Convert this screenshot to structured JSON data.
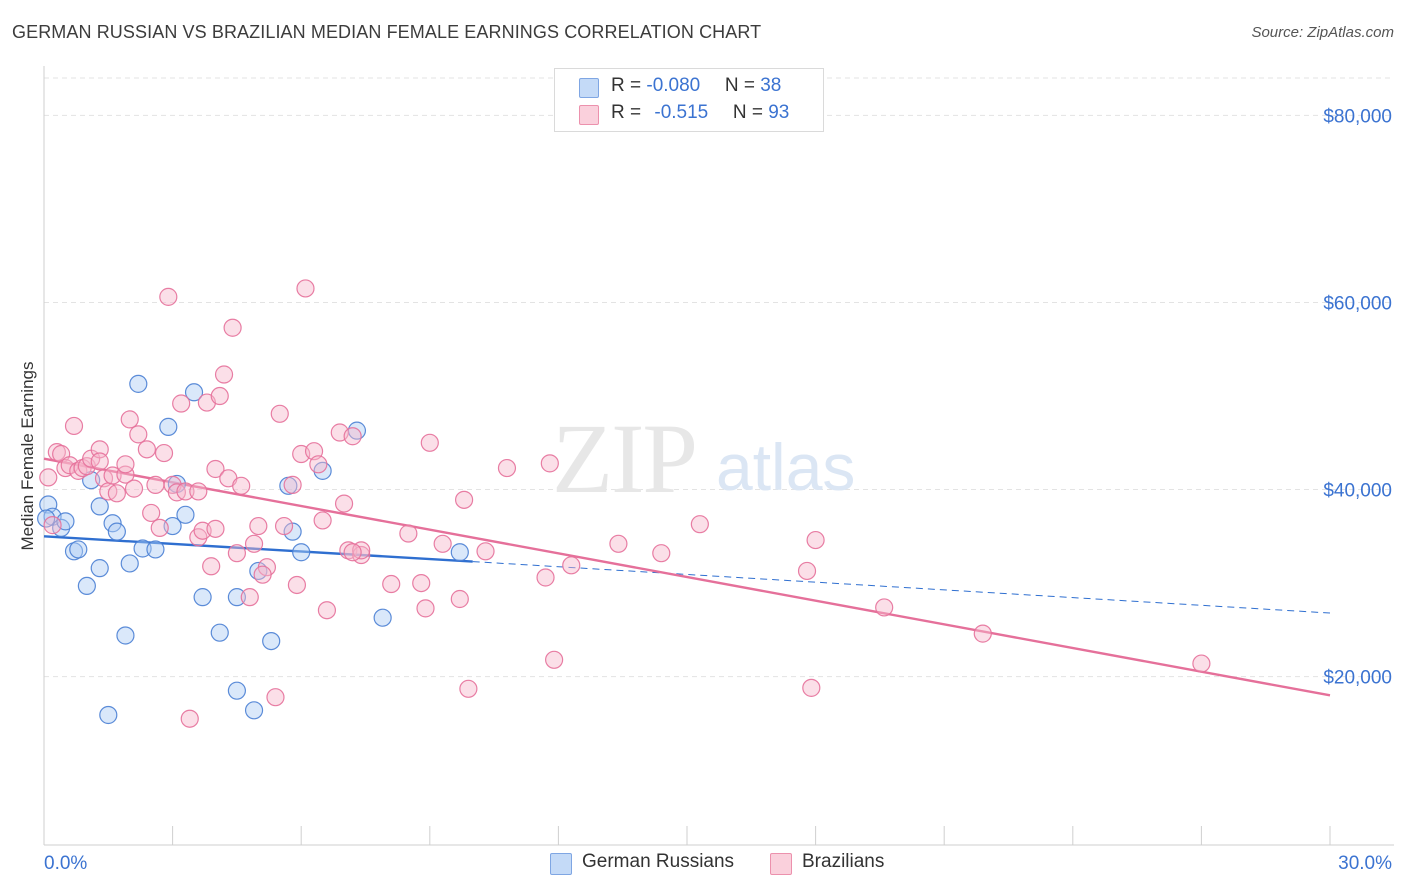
{
  "title": "GERMAN RUSSIAN VS BRAZILIAN MEDIAN FEMALE EARNINGS CORRELATION CHART",
  "source": "Source: ZipAtlas.com",
  "watermark": {
    "zip": "ZIP",
    "atlas": "atlas"
  },
  "legend": {
    "rows": [
      {
        "r_label": "R = ",
        "r_value": "-0.080",
        "n_label": "N = ",
        "n_value": "38",
        "color": "#aecbf5"
      },
      {
        "r_label": "R = ",
        "r_value": "-0.515",
        "n_label": "N = ",
        "n_value": "93",
        "color": "#f7b8cb"
      }
    ]
  },
  "bottom_legend": [
    {
      "label": "German Russians",
      "color": "#aecbf5"
    },
    {
      "label": "Brazilians",
      "color": "#f7b8cb"
    }
  ],
  "chart_data": {
    "type": "scatter",
    "title": "GERMAN RUSSIAN VS BRAZILIAN MEDIAN FEMALE EARNINGS CORRELATION CHART",
    "xlabel": "",
    "ylabel": "Median Female Earnings",
    "xlim": [
      0,
      30
    ],
    "ylim": [
      2000,
      84000
    ],
    "x_tick_labels": [
      "0.0%",
      "30.0%"
    ],
    "y_ticks": [
      20000,
      40000,
      60000,
      80000
    ],
    "y_tick_labels": [
      "$20,000",
      "$40,000",
      "$60,000",
      "$80,000"
    ],
    "grid": true,
    "legend_position": "top-center",
    "series": [
      {
        "name": "German Russians",
        "color": "#4a7fd4",
        "fill": "#aecbf5",
        "trend": {
          "x": [
            0,
            10
          ],
          "y": [
            35000,
            32300
          ],
          "dashed_to": [
            30,
            26800
          ]
        },
        "points": [
          [
            0.1,
            38400
          ],
          [
            0.2,
            37100
          ],
          [
            0.4,
            35900
          ],
          [
            0.5,
            36600
          ],
          [
            0.7,
            33400
          ],
          [
            0.8,
            33600
          ],
          [
            1.0,
            29700
          ],
          [
            1.1,
            41000
          ],
          [
            1.3,
            38200
          ],
          [
            1.3,
            31600
          ],
          [
            1.5,
            15900
          ],
          [
            1.6,
            36400
          ],
          [
            1.7,
            35500
          ],
          [
            1.9,
            24400
          ],
          [
            2.0,
            32100
          ],
          [
            2.2,
            51300
          ],
          [
            2.3,
            33700
          ],
          [
            2.6,
            33600
          ],
          [
            2.9,
            46700
          ],
          [
            3.0,
            36100
          ],
          [
            3.1,
            40600
          ],
          [
            3.3,
            37300
          ],
          [
            3.5,
            50400
          ],
          [
            3.7,
            28500
          ],
          [
            4.1,
            24700
          ],
          [
            4.5,
            18500
          ],
          [
            4.5,
            28500
          ],
          [
            4.9,
            16400
          ],
          [
            5.0,
            31300
          ],
          [
            5.3,
            23800
          ],
          [
            5.7,
            40400
          ],
          [
            5.8,
            35500
          ],
          [
            6.0,
            33300
          ],
          [
            6.5,
            42000
          ],
          [
            7.3,
            46300
          ],
          [
            7.9,
            26300
          ],
          [
            9.7,
            33300
          ],
          [
            0.05,
            36900
          ]
        ]
      },
      {
        "name": "Brazilians",
        "color": "#e5709a",
        "fill": "#f7b8cb",
        "trend": {
          "x": [
            0,
            30
          ],
          "y": [
            43300,
            18000
          ]
        },
        "points": [
          [
            0.1,
            41300
          ],
          [
            0.2,
            36200
          ],
          [
            0.3,
            44000
          ],
          [
            0.4,
            43800
          ],
          [
            0.5,
            42300
          ],
          [
            0.6,
            42600
          ],
          [
            0.7,
            46800
          ],
          [
            0.8,
            42000
          ],
          [
            0.9,
            42300
          ],
          [
            1.0,
            42500
          ],
          [
            1.1,
            43300
          ],
          [
            1.3,
            44300
          ],
          [
            1.3,
            43000
          ],
          [
            1.4,
            41200
          ],
          [
            1.5,
            39800
          ],
          [
            1.6,
            41500
          ],
          [
            1.7,
            39600
          ],
          [
            1.9,
            41600
          ],
          [
            1.9,
            42700
          ],
          [
            2.0,
            47500
          ],
          [
            2.1,
            40100
          ],
          [
            2.2,
            45900
          ],
          [
            2.4,
            44300
          ],
          [
            2.5,
            37500
          ],
          [
            2.6,
            40500
          ],
          [
            2.7,
            35900
          ],
          [
            2.8,
            43900
          ],
          [
            2.9,
            60600
          ],
          [
            3.0,
            40500
          ],
          [
            3.1,
            39700
          ],
          [
            3.2,
            49200
          ],
          [
            3.3,
            39800
          ],
          [
            3.4,
            15500
          ],
          [
            3.6,
            39800
          ],
          [
            3.6,
            34900
          ],
          [
            3.7,
            35600
          ],
          [
            3.8,
            49300
          ],
          [
            3.9,
            31800
          ],
          [
            4.0,
            35800
          ],
          [
            4.0,
            42200
          ],
          [
            4.1,
            50000
          ],
          [
            4.2,
            52300
          ],
          [
            4.3,
            41200
          ],
          [
            4.4,
            57300
          ],
          [
            4.5,
            33200
          ],
          [
            4.6,
            40400
          ],
          [
            4.8,
            28500
          ],
          [
            4.9,
            34200
          ],
          [
            5.0,
            36100
          ],
          [
            5.2,
            31700
          ],
          [
            5.4,
            17800
          ],
          [
            5.5,
            48100
          ],
          [
            5.6,
            36100
          ],
          [
            5.8,
            40500
          ],
          [
            5.9,
            29800
          ],
          [
            6.0,
            43800
          ],
          [
            6.1,
            61500
          ],
          [
            6.3,
            44100
          ],
          [
            6.4,
            42700
          ],
          [
            6.5,
            36700
          ],
          [
            6.6,
            27100
          ],
          [
            6.9,
            46100
          ],
          [
            7.0,
            38500
          ],
          [
            7.1,
            33500
          ],
          [
            7.2,
            45700
          ],
          [
            7.4,
            33000
          ],
          [
            7.4,
            33500
          ],
          [
            8.1,
            29900
          ],
          [
            8.5,
            35300
          ],
          [
            8.8,
            30000
          ],
          [
            8.9,
            27300
          ],
          [
            9.0,
            45000
          ],
          [
            9.3,
            34200
          ],
          [
            9.7,
            28300
          ],
          [
            9.8,
            38900
          ],
          [
            9.9,
            18700
          ],
          [
            10.3,
            33400
          ],
          [
            10.8,
            42300
          ],
          [
            11.7,
            30600
          ],
          [
            11.8,
            42800
          ],
          [
            11.9,
            21800
          ],
          [
            12.3,
            31900
          ],
          [
            13.4,
            34200
          ],
          [
            14.4,
            33200
          ],
          [
            15.3,
            36300
          ],
          [
            17.8,
            31300
          ],
          [
            17.9,
            18800
          ],
          [
            18.0,
            34600
          ],
          [
            19.6,
            27400
          ],
          [
            21.9,
            24600
          ],
          [
            27.0,
            21400
          ],
          [
            7.2,
            33300
          ],
          [
            5.1,
            30900
          ]
        ]
      }
    ]
  }
}
